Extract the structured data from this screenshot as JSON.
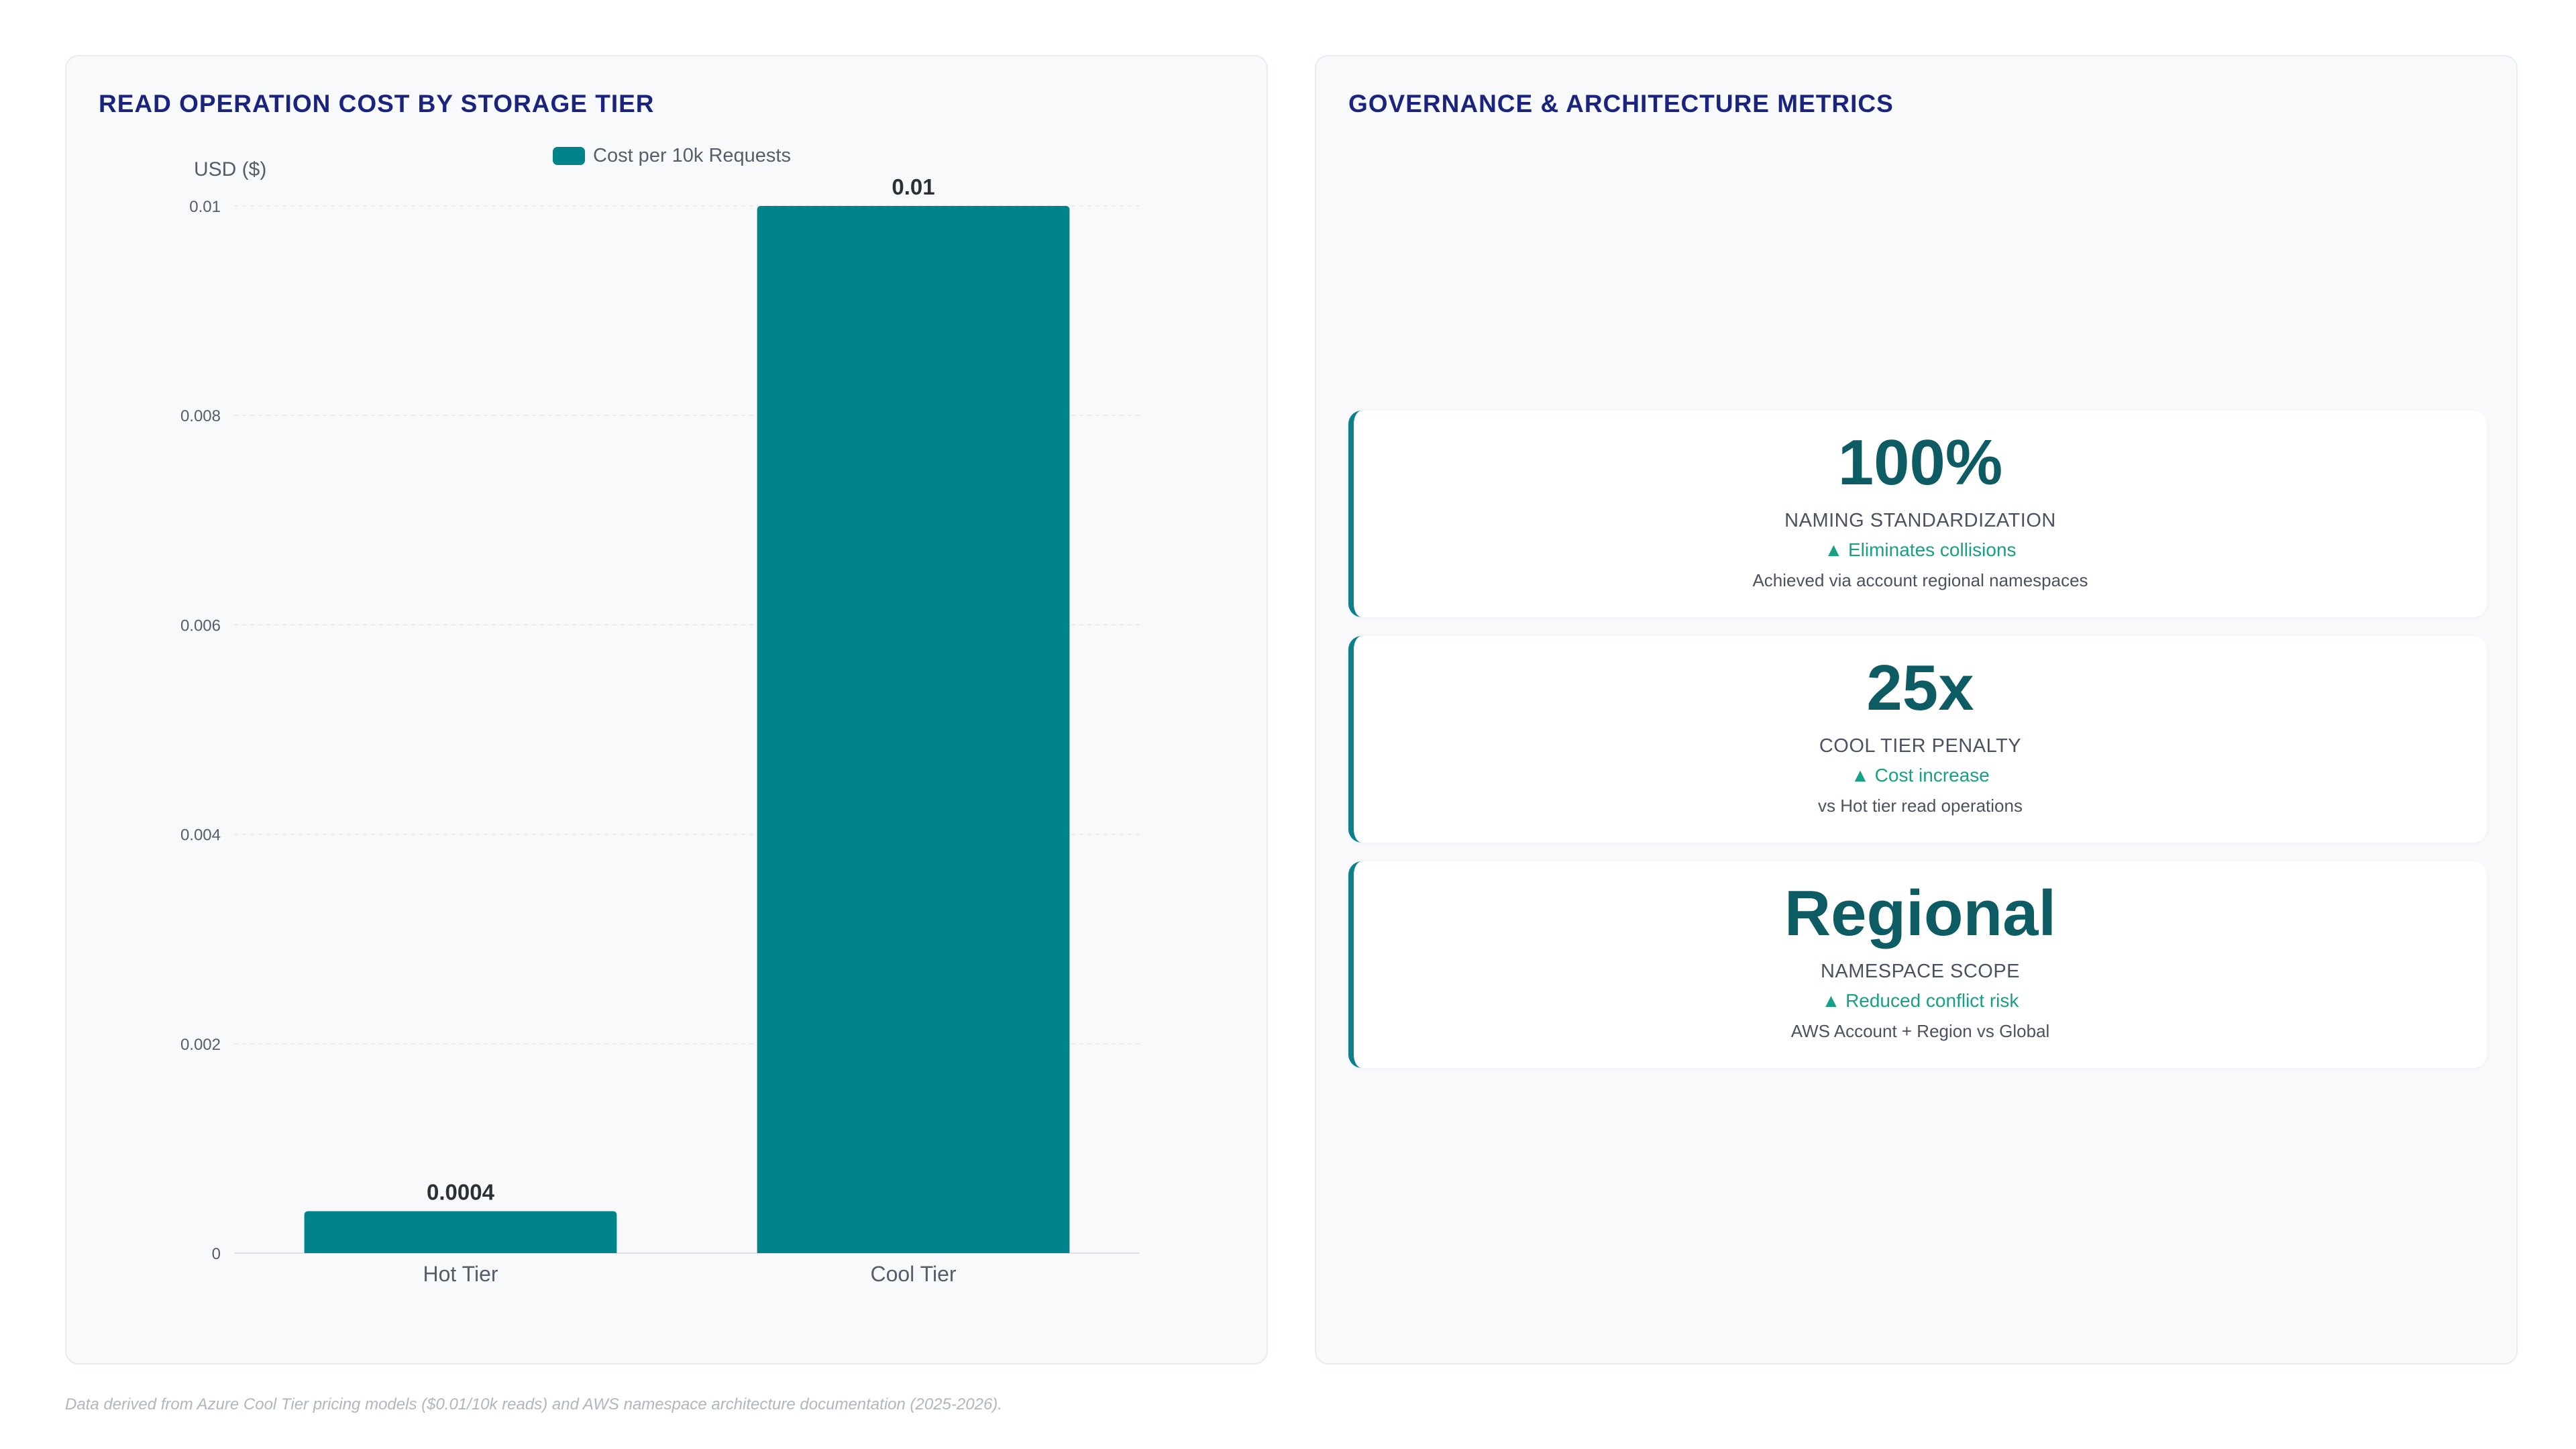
{
  "left_panel": {
    "title": "READ OPERATION COST BY STORAGE TIER"
  },
  "right_panel": {
    "title": "GOVERNANCE & ARCHITECTURE METRICS"
  },
  "chart_data": {
    "type": "bar",
    "categories": [
      "Hot Tier",
      "Cool Tier"
    ],
    "series": [
      {
        "name": "Cost per 10k Requests",
        "values": [
          0.0004,
          0.01
        ],
        "color": "#00838a"
      }
    ],
    "data_labels": [
      "0.0004",
      "0.01"
    ],
    "ylabel": "USD ($)",
    "xlabel": "",
    "ylim": [
      0,
      0.01
    ],
    "yticks": [
      0,
      0.002,
      0.004,
      0.006,
      0.008,
      0.01
    ],
    "ytick_labels": [
      "0",
      "0.002",
      "0.004",
      "0.006",
      "0.008",
      "0.01"
    ],
    "legend_position": "top",
    "grid": true
  },
  "kpis": [
    {
      "value": "100%",
      "label": "NAMING STANDARDIZATION",
      "trend": "▲ Eliminates collisions",
      "description": "Achieved via account regional namespaces"
    },
    {
      "value": "25x",
      "label": "COOL TIER PENALTY",
      "trend": "▲ Cost increase",
      "description": "vs Hot tier read operations"
    },
    {
      "value": "Regional",
      "label": "NAMESPACE SCOPE",
      "trend": "▲ Reduced conflict risk",
      "description": "AWS Account + Region vs Global"
    }
  ],
  "footnote": "Data derived from Azure Cool Tier pricing models ($0.01/10k reads) and AWS namespace architecture documentation (2025-2026).",
  "colors": {
    "accent": "#0b7f8a",
    "title": "#1a237e",
    "kpi_value": "#0d5c63",
    "trend": "#16a085"
  }
}
